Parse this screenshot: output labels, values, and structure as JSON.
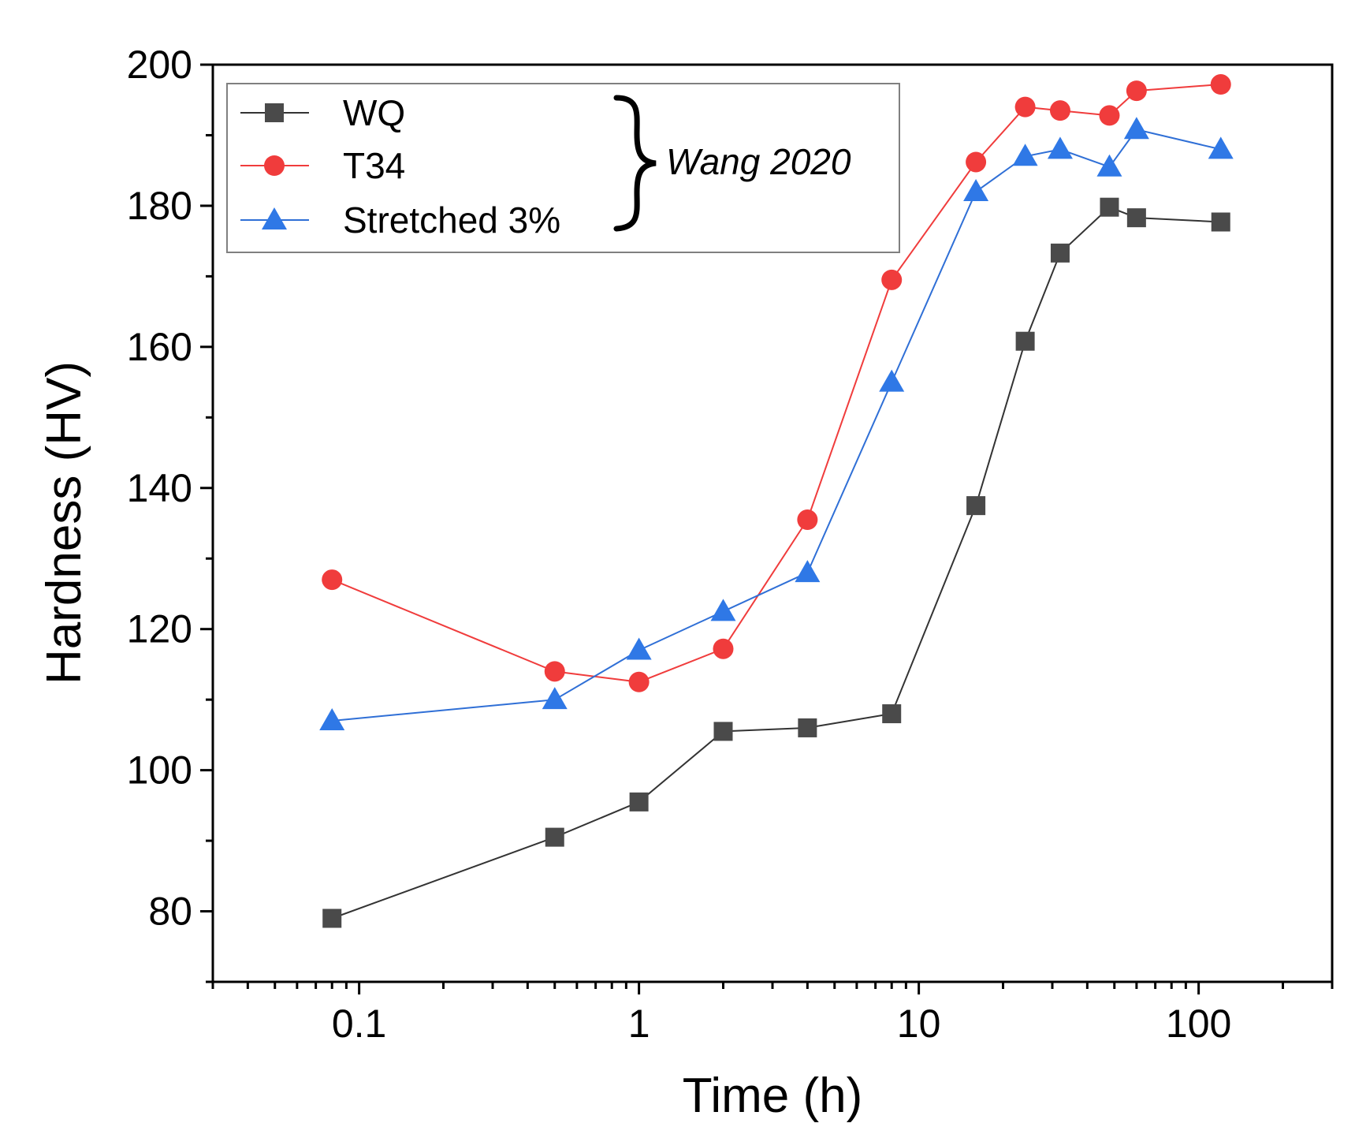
{
  "chart_data": {
    "type": "line",
    "xscale": "log",
    "xlabel": "Time (h)",
    "ylabel": "Hardness (HV)",
    "xlim": [
      0.03,
      300
    ],
    "ylim": [
      70,
      200
    ],
    "xticks": [
      {
        "value": 0.1,
        "label": "0.1"
      },
      {
        "value": 1,
        "label": "1"
      },
      {
        "value": 10,
        "label": "10"
      },
      {
        "value": 100,
        "label": "100"
      }
    ],
    "yticks": [
      {
        "value": 80,
        "label": "80"
      },
      {
        "value": 100,
        "label": "100"
      },
      {
        "value": 120,
        "label": "120"
      },
      {
        "value": 140,
        "label": "140"
      },
      {
        "value": 160,
        "label": "160"
      },
      {
        "value": 180,
        "label": "180"
      },
      {
        "value": 200,
        "label": "200"
      }
    ],
    "legend_position": "top-left",
    "legend_reference": "Wang 2020",
    "series": [
      {
        "name": "WQ",
        "marker": "square",
        "line_color": "#333333",
        "marker_color": "#4a4a4a",
        "x": [
          0.08,
          0.5,
          1,
          2,
          4,
          8,
          16,
          24,
          32,
          48,
          60,
          120
        ],
        "y": [
          79,
          90.5,
          95.5,
          105.5,
          106,
          108,
          137.5,
          160.8,
          173.3,
          179.8,
          178.3,
          177.7
        ]
      },
      {
        "name": "T34",
        "marker": "circle",
        "line_color": "#f03c3c",
        "marker_color": "#f03c3c",
        "x": [
          0.08,
          0.5,
          1,
          2,
          4,
          8,
          16,
          24,
          32,
          48,
          60,
          120
        ],
        "y": [
          127,
          114,
          112.5,
          117.2,
          135.5,
          169.5,
          186.2,
          194,
          193.5,
          192.8,
          196.3,
          197.2
        ]
      },
      {
        "name": "Stretched 3%",
        "marker": "triangle",
        "line_color": "#2f6fd6",
        "marker_color": "#2f78e6",
        "x": [
          0.08,
          0.5,
          1,
          2,
          4,
          8,
          16,
          24,
          32,
          48,
          60,
          120
        ],
        "y": [
          107,
          110,
          117,
          122.5,
          128,
          155,
          182,
          187,
          188,
          185.5,
          190.8,
          188
        ]
      }
    ]
  }
}
